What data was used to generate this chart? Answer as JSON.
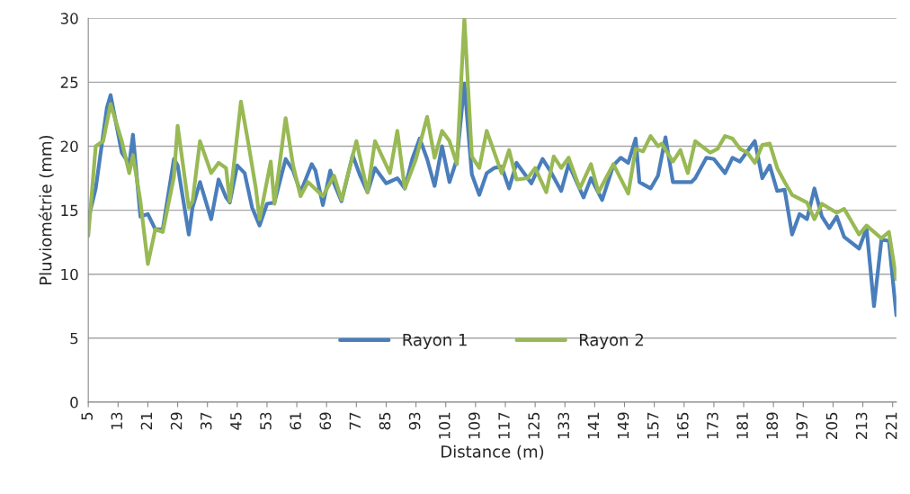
{
  "chart_data": {
    "type": "line",
    "xlabel": "Distance (m)",
    "ylabel": "Pluviométrie (mm)",
    "xlim": [
      5,
      222
    ],
    "xticks": [
      5,
      13,
      21,
      29,
      37,
      45,
      53,
      61,
      69,
      77,
      85,
      93,
      101,
      109,
      117,
      125,
      133,
      141,
      149,
      157,
      165,
      173,
      181,
      189,
      197,
      205,
      213,
      221
    ],
    "ylim": [
      0,
      30
    ],
    "yticks": [
      0,
      5,
      10,
      15,
      20,
      25,
      30
    ],
    "grid": "y",
    "legend": "bottom",
    "marker": "none",
    "line_style": "solid",
    "series": [
      {
        "name": "Rayon 1",
        "color": "#4a7ebb",
        "x": [
          5,
          7,
          10,
          11,
          14,
          16,
          17,
          19,
          21,
          23,
          25,
          28,
          29,
          32,
          33,
          35,
          38,
          40,
          42,
          43,
          45,
          47,
          49,
          51,
          53,
          55,
          58,
          60,
          62,
          65,
          66,
          68,
          70,
          71,
          73,
          76,
          78,
          80,
          82,
          85,
          88,
          90,
          92,
          94,
          96,
          98,
          100,
          102,
          104,
          106,
          108,
          110,
          112,
          114,
          116,
          118,
          120,
          124,
          127,
          129,
          132,
          134,
          138,
          140,
          143,
          146,
          148,
          150,
          152,
          153,
          156,
          158,
          160,
          162,
          167,
          168,
          171,
          173,
          176,
          178,
          180,
          184,
          186,
          188,
          190,
          192,
          194,
          196,
          198,
          200,
          202,
          204,
          206,
          208,
          212,
          214,
          216,
          218,
          220,
          222
        ],
        "values": [
          14.3,
          16.7,
          23.0,
          24.0,
          19.5,
          18.6,
          20.9,
          14.5,
          14.7,
          13.5,
          13.5,
          19.0,
          18.5,
          13.1,
          15.2,
          17.2,
          14.3,
          17.4,
          16.0,
          15.6,
          18.5,
          17.9,
          15.2,
          13.8,
          15.5,
          15.6,
          19.0,
          18.1,
          16.4,
          18.6,
          18.1,
          15.4,
          18.1,
          17.1,
          15.7,
          19.3,
          17.7,
          16.4,
          18.3,
          17.1,
          17.5,
          16.7,
          19.0,
          20.6,
          19.0,
          16.9,
          20.0,
          17.2,
          19.0,
          24.9,
          17.8,
          16.2,
          17.9,
          18.3,
          18.4,
          16.7,
          18.7,
          17.1,
          19.0,
          18.1,
          16.5,
          18.6,
          16.0,
          17.5,
          15.8,
          18.5,
          19.1,
          18.7,
          20.6,
          17.2,
          16.7,
          17.7,
          20.7,
          17.2,
          17.2,
          17.5,
          19.1,
          19.0,
          17.9,
          19.1,
          18.8,
          20.4,
          17.5,
          18.5,
          16.5,
          16.6,
          13.1,
          14.7,
          14.3,
          16.7,
          14.5,
          13.6,
          14.5,
          12.9,
          12.0,
          13.6,
          7.5,
          12.7,
          12.6,
          6.8
        ]
      },
      {
        "name": "Rayon 2",
        "color": "#98b954",
        "x": [
          5,
          7,
          9,
          11,
          14,
          16,
          17,
          19,
          21,
          23,
          25,
          28,
          29,
          32,
          33,
          35,
          38,
          40,
          42,
          43,
          46,
          48,
          50,
          51,
          54,
          55,
          58,
          60,
          62,
          64,
          68,
          71,
          73,
          77,
          80,
          82,
          86,
          88,
          90,
          93,
          96,
          98,
          100,
          102,
          104,
          106,
          108,
          110,
          112,
          116,
          118,
          120,
          123,
          125,
          128,
          130,
          132,
          134,
          137,
          140,
          142,
          146,
          150,
          152,
          154,
          156,
          158,
          159,
          162,
          164,
          166,
          168,
          172,
          174,
          176,
          178,
          180,
          182,
          184,
          186,
          188,
          190,
          192,
          194,
          198,
          200,
          202,
          206,
          208,
          212,
          214,
          218,
          220,
          222
        ],
        "values": [
          13.0,
          20.0,
          20.4,
          23.3,
          20.4,
          17.9,
          19.3,
          15.7,
          10.8,
          13.5,
          13.3,
          17.6,
          21.6,
          15.2,
          15.7,
          20.4,
          17.9,
          18.7,
          18.3,
          15.7,
          23.5,
          20.2,
          16.7,
          14.3,
          18.8,
          15.5,
          22.2,
          18.5,
          16.1,
          17.2,
          16.1,
          17.7,
          15.8,
          20.4,
          16.4,
          20.4,
          17.9,
          21.2,
          16.7,
          19.0,
          22.3,
          19.1,
          21.2,
          20.4,
          18.6,
          30.0,
          19.2,
          18.3,
          21.2,
          17.9,
          19.7,
          17.4,
          17.5,
          18.3,
          16.4,
          19.2,
          18.3,
          19.1,
          16.7,
          18.6,
          16.4,
          18.6,
          16.3,
          19.8,
          19.6,
          20.8,
          20.0,
          20.2,
          18.8,
          19.7,
          17.9,
          20.4,
          19.5,
          19.8,
          20.8,
          20.6,
          19.8,
          19.5,
          18.7,
          20.1,
          20.2,
          18.3,
          17.2,
          16.2,
          15.6,
          14.3,
          15.5,
          14.8,
          15.1,
          13.1,
          13.8,
          12.8,
          13.3,
          9.6
        ]
      }
    ]
  }
}
